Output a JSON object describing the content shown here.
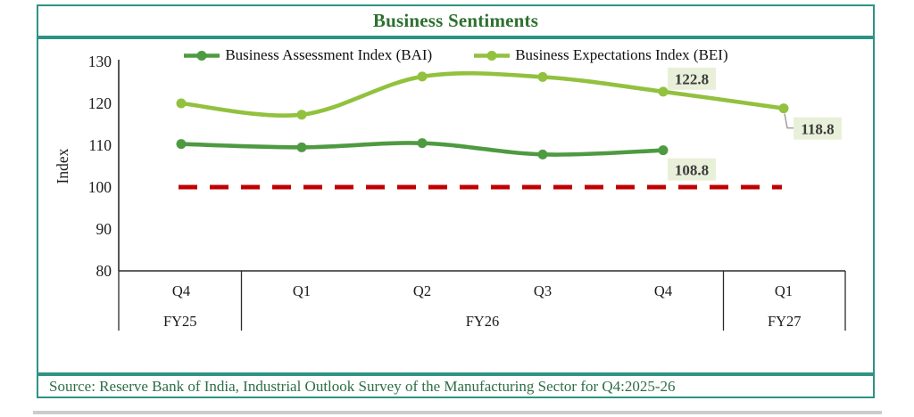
{
  "title": "Business Sentiments",
  "source": "Source: Reserve Bank of India, Industrial Outlook Survey of the Manufacturing Sector for Q4:2025-26",
  "colors": {
    "border": "#2e9383",
    "title_text": "#2e7030",
    "source_text": "#2d6e46",
    "axis": "#2b2b2b",
    "bai_line": "#4e9a41",
    "bei_line": "#92c13e",
    "threshold_line": "#c00000",
    "label_box_bg": "#e9f0da",
    "label_text": "#3c3c3c",
    "leader_line": "#a0a0a0"
  },
  "chart_data": {
    "type": "line",
    "title": "Business Sentiments",
    "ylabel": "Index",
    "ylim": [
      80,
      130
    ],
    "yticks": [
      130,
      120,
      110,
      100,
      90,
      80
    ],
    "grid": false,
    "legend_position": "top",
    "line_style": "smooth",
    "categories": [
      "Q4",
      "Q1",
      "Q2",
      "Q3",
      "Q4",
      "Q1"
    ],
    "fiscal_year_groups": [
      {
        "label": "FY25",
        "from": 0,
        "to": 0
      },
      {
        "label": "FY26",
        "from": 1,
        "to": 4
      },
      {
        "label": "FY27",
        "from": 5,
        "to": 5
      }
    ],
    "series": [
      {
        "name": "Business Assessment Index (BAI)",
        "color": "#4e9a41",
        "values": [
          110.3,
          109.5,
          110.5,
          107.8,
          108.8
        ],
        "point_labels": {
          "4": "108.8"
        }
      },
      {
        "name": "Business Expectations Index (BEI)",
        "color": "#92c13e",
        "values": [
          120.0,
          117.3,
          126.4,
          126.3,
          122.8,
          118.8
        ],
        "point_labels": {
          "4": "122.8",
          "5": "118.8"
        }
      }
    ],
    "threshold": {
      "value": 100,
      "style": "dashed",
      "color": "#c00000"
    }
  }
}
